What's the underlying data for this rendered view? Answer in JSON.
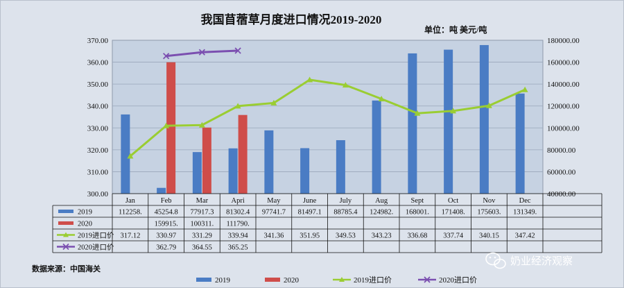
{
  "chart_data": {
    "type": "bar",
    "title": "我国苜蓿草月度进口情况2019-2020",
    "unit_label": "单位：吨  美元/吨",
    "categories": [
      "Jan",
      "Feb",
      "Mar",
      "Apri",
      "May",
      "June",
      "July",
      "Aug",
      "Sept",
      "Oct",
      "Nov",
      "Dec"
    ],
    "left_axis": {
      "min": 300,
      "max": 370,
      "ticks": [
        "300.00",
        "310.00",
        "320.00",
        "330.00",
        "340.00",
        "350.00",
        "360.00",
        "370.00"
      ]
    },
    "right_axis": {
      "min": 40000,
      "max": 180000,
      "ticks": [
        "40000.00",
        "60000.00",
        "80000.00",
        "100000.00",
        "120000.00",
        "140000.00",
        "160000.00",
        "180000.00"
      ]
    },
    "series": [
      {
        "name": "2019",
        "kind": "bar",
        "axis": "right",
        "color": "#4a7cc4",
        "values": [
          112258,
          45254.8,
          77917.3,
          81302.4,
          97741.7,
          81497.1,
          88785.4,
          124982,
          168001,
          171408,
          175603,
          131349
        ],
        "labels": [
          "112258.",
          "45254.8",
          "77917.3",
          "81302.4",
          "97741.7",
          "81497.1",
          "88785.4",
          "124982.",
          "168001.",
          "171408.",
          "175603.",
          "131349."
        ]
      },
      {
        "name": "2020",
        "kind": "bar",
        "axis": "right",
        "color": "#cf4d4a",
        "values": [
          null,
          159915,
          100311,
          111790,
          null,
          null,
          null,
          null,
          null,
          null,
          null,
          null
        ],
        "labels": [
          "",
          "159915.",
          "100311.",
          "111790.",
          "",
          "",
          "",
          "",
          "",
          "",
          "",
          ""
        ]
      },
      {
        "name": "2019进口价",
        "kind": "line",
        "axis": "left",
        "color": "#9acd32",
        "values": [
          317.12,
          330.97,
          331.29,
          339.94,
          341.36,
          351.95,
          349.53,
          343.23,
          336.68,
          337.74,
          340.15,
          347.42
        ],
        "labels": [
          "317.12",
          "330.97",
          "331.29",
          "339.94",
          "341.36",
          "351.95",
          "349.53",
          "343.23",
          "336.68",
          "337.74",
          "340.15",
          "347.42"
        ]
      },
      {
        "name": "2020进口价",
        "kind": "line",
        "axis": "left",
        "color": "#7b4fb0",
        "values": [
          null,
          362.79,
          364.55,
          365.25,
          null,
          null,
          null,
          null,
          null,
          null,
          null,
          null
        ],
        "labels": [
          "",
          "362.79",
          "364.55",
          "365.25",
          "",
          "",
          "",
          "",
          "",
          "",
          "",
          ""
        ]
      }
    ],
    "legend": [
      "2019",
      "2020",
      "2019进口价",
      "2020进口价"
    ],
    "legend_position": "bottom",
    "source": "数据来源：中国海关"
  },
  "watermark": "奶业经济观察"
}
